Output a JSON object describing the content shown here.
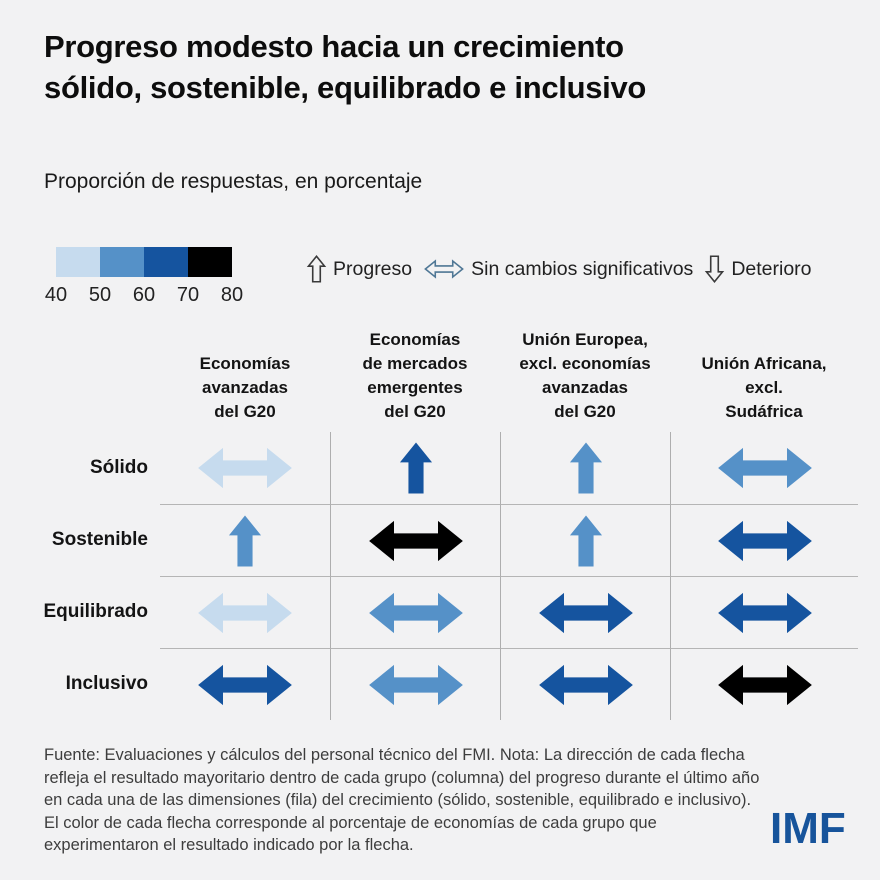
{
  "title": "Progreso modesto hacia un crecimiento\nsólido, sostenible, equilibrado e inclusivo",
  "subtitle": "Proporción de respuestas, en porcentaje",
  "color_legend": {
    "tick_labels": [
      "40",
      "50",
      "60",
      "70",
      "80"
    ],
    "segment_colors": [
      "#c6dbee",
      "#5591c8",
      "#15549f",
      "#000000"
    ]
  },
  "arrow_legend": {
    "items": [
      {
        "direction": "progreso",
        "label": "Progreso",
        "icon_color": "#3a3a3a"
      },
      {
        "direction": "sin-cambios",
        "label": "Sin cambios significativos",
        "icon_color": "#4f7795"
      },
      {
        "direction": "deterioro",
        "label": "Deterioro",
        "icon_color": "#3a3a3a"
      }
    ]
  },
  "chart_data": {
    "type": "table",
    "title": "Progreso modesto hacia un crecimiento sólido, sostenible, equilibrado e inclusivo",
    "subtitle": "Proporción de respuestas, en porcentaje",
    "columns": [
      "Economías\navanzadas\ndel G20",
      "Economías\nde mercados\nemergentes\ndel G20",
      "Unión Europea,\nexcl. economías\navanzadas\ndel G20",
      "Unión Africana,\nexcl.\nSudáfrica"
    ],
    "rows": [
      "Sólido",
      "Sostenible",
      "Equilibrado",
      "Inclusivo"
    ],
    "palette": {
      "light-blue": {
        "hex": "#c6dbee",
        "value_range": "40–50"
      },
      "medium-blue": {
        "hex": "#5591c8",
        "value_range": "50–60"
      },
      "dark-blue": {
        "hex": "#15549f",
        "value_range": "60–70"
      },
      "black": {
        "hex": "#000000",
        "value_range": "70–80"
      }
    },
    "cells": [
      [
        {
          "direction": "sin-cambios",
          "color": "light-blue"
        },
        {
          "direction": "progreso",
          "color": "dark-blue"
        },
        {
          "direction": "progreso",
          "color": "medium-blue"
        },
        {
          "direction": "sin-cambios",
          "color": "medium-blue"
        }
      ],
      [
        {
          "direction": "progreso",
          "color": "medium-blue"
        },
        {
          "direction": "sin-cambios",
          "color": "black"
        },
        {
          "direction": "progreso",
          "color": "medium-blue"
        },
        {
          "direction": "sin-cambios",
          "color": "dark-blue"
        }
      ],
      [
        {
          "direction": "sin-cambios",
          "color": "light-blue"
        },
        {
          "direction": "sin-cambios",
          "color": "medium-blue"
        },
        {
          "direction": "sin-cambios",
          "color": "dark-blue"
        },
        {
          "direction": "sin-cambios",
          "color": "dark-blue"
        }
      ],
      [
        {
          "direction": "sin-cambios",
          "color": "dark-blue"
        },
        {
          "direction": "sin-cambios",
          "color": "medium-blue"
        },
        {
          "direction": "sin-cambios",
          "color": "dark-blue"
        },
        {
          "direction": "sin-cambios",
          "color": "black"
        }
      ]
    ]
  },
  "footer": {
    "text": "Fuente: Evaluaciones y cálculos del personal técnico del FMI. Nota: La dirección de cada flecha refleja el resultado mayoritario dentro de cada grupo (columna) del progreso durante el último año en cada una de las dimensiones (fila) del crecimiento (sólido, sostenible, equilibrado e inclusivo). El color de cada flecha corresponde al porcentaje de economías de cada grupo que experimentaron el resultado indicado por la flecha."
  },
  "logo": {
    "text": "IMF"
  }
}
